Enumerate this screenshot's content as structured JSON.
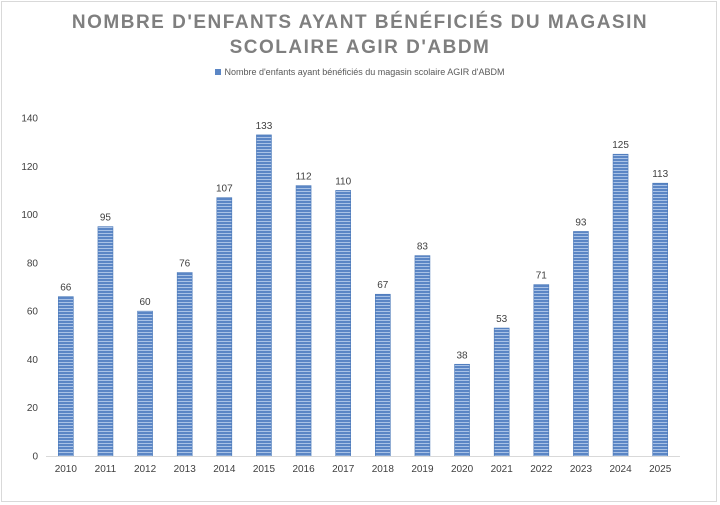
{
  "chart_data": {
    "type": "bar",
    "title_lines": [
      "NOMBRE D'ENFANTS AYANT BÉNÉFICIÉS DU MAGASIN",
      "SCOLAIRE AGIR D'ABDM"
    ],
    "legend_label": "Nombre d'enfants ayant bénéficiés du magasin scolaire AGIR d'ABDM",
    "categories": [
      "2010",
      "2011",
      "2012",
      "2013",
      "2014",
      "2015",
      "2016",
      "2017",
      "2018",
      "2019",
      "2020",
      "2021",
      "2022",
      "2023",
      "2024",
      "2025"
    ],
    "series": [
      {
        "name": "Nombre d'enfants ayant bénéficiés du magasin scolaire AGIR d'ABDM",
        "values": [
          66,
          95,
          60,
          76,
          107,
          133,
          112,
          110,
          67,
          83,
          38,
          53,
          71,
          93,
          125,
          113
        ],
        "color": "#5b86c5"
      }
    ],
    "ylim": [
      0,
      140
    ],
    "yticks": [
      0,
      20,
      40,
      60,
      80,
      100,
      120,
      140
    ],
    "grid": false,
    "legend_position": "top",
    "data_labels": true
  }
}
